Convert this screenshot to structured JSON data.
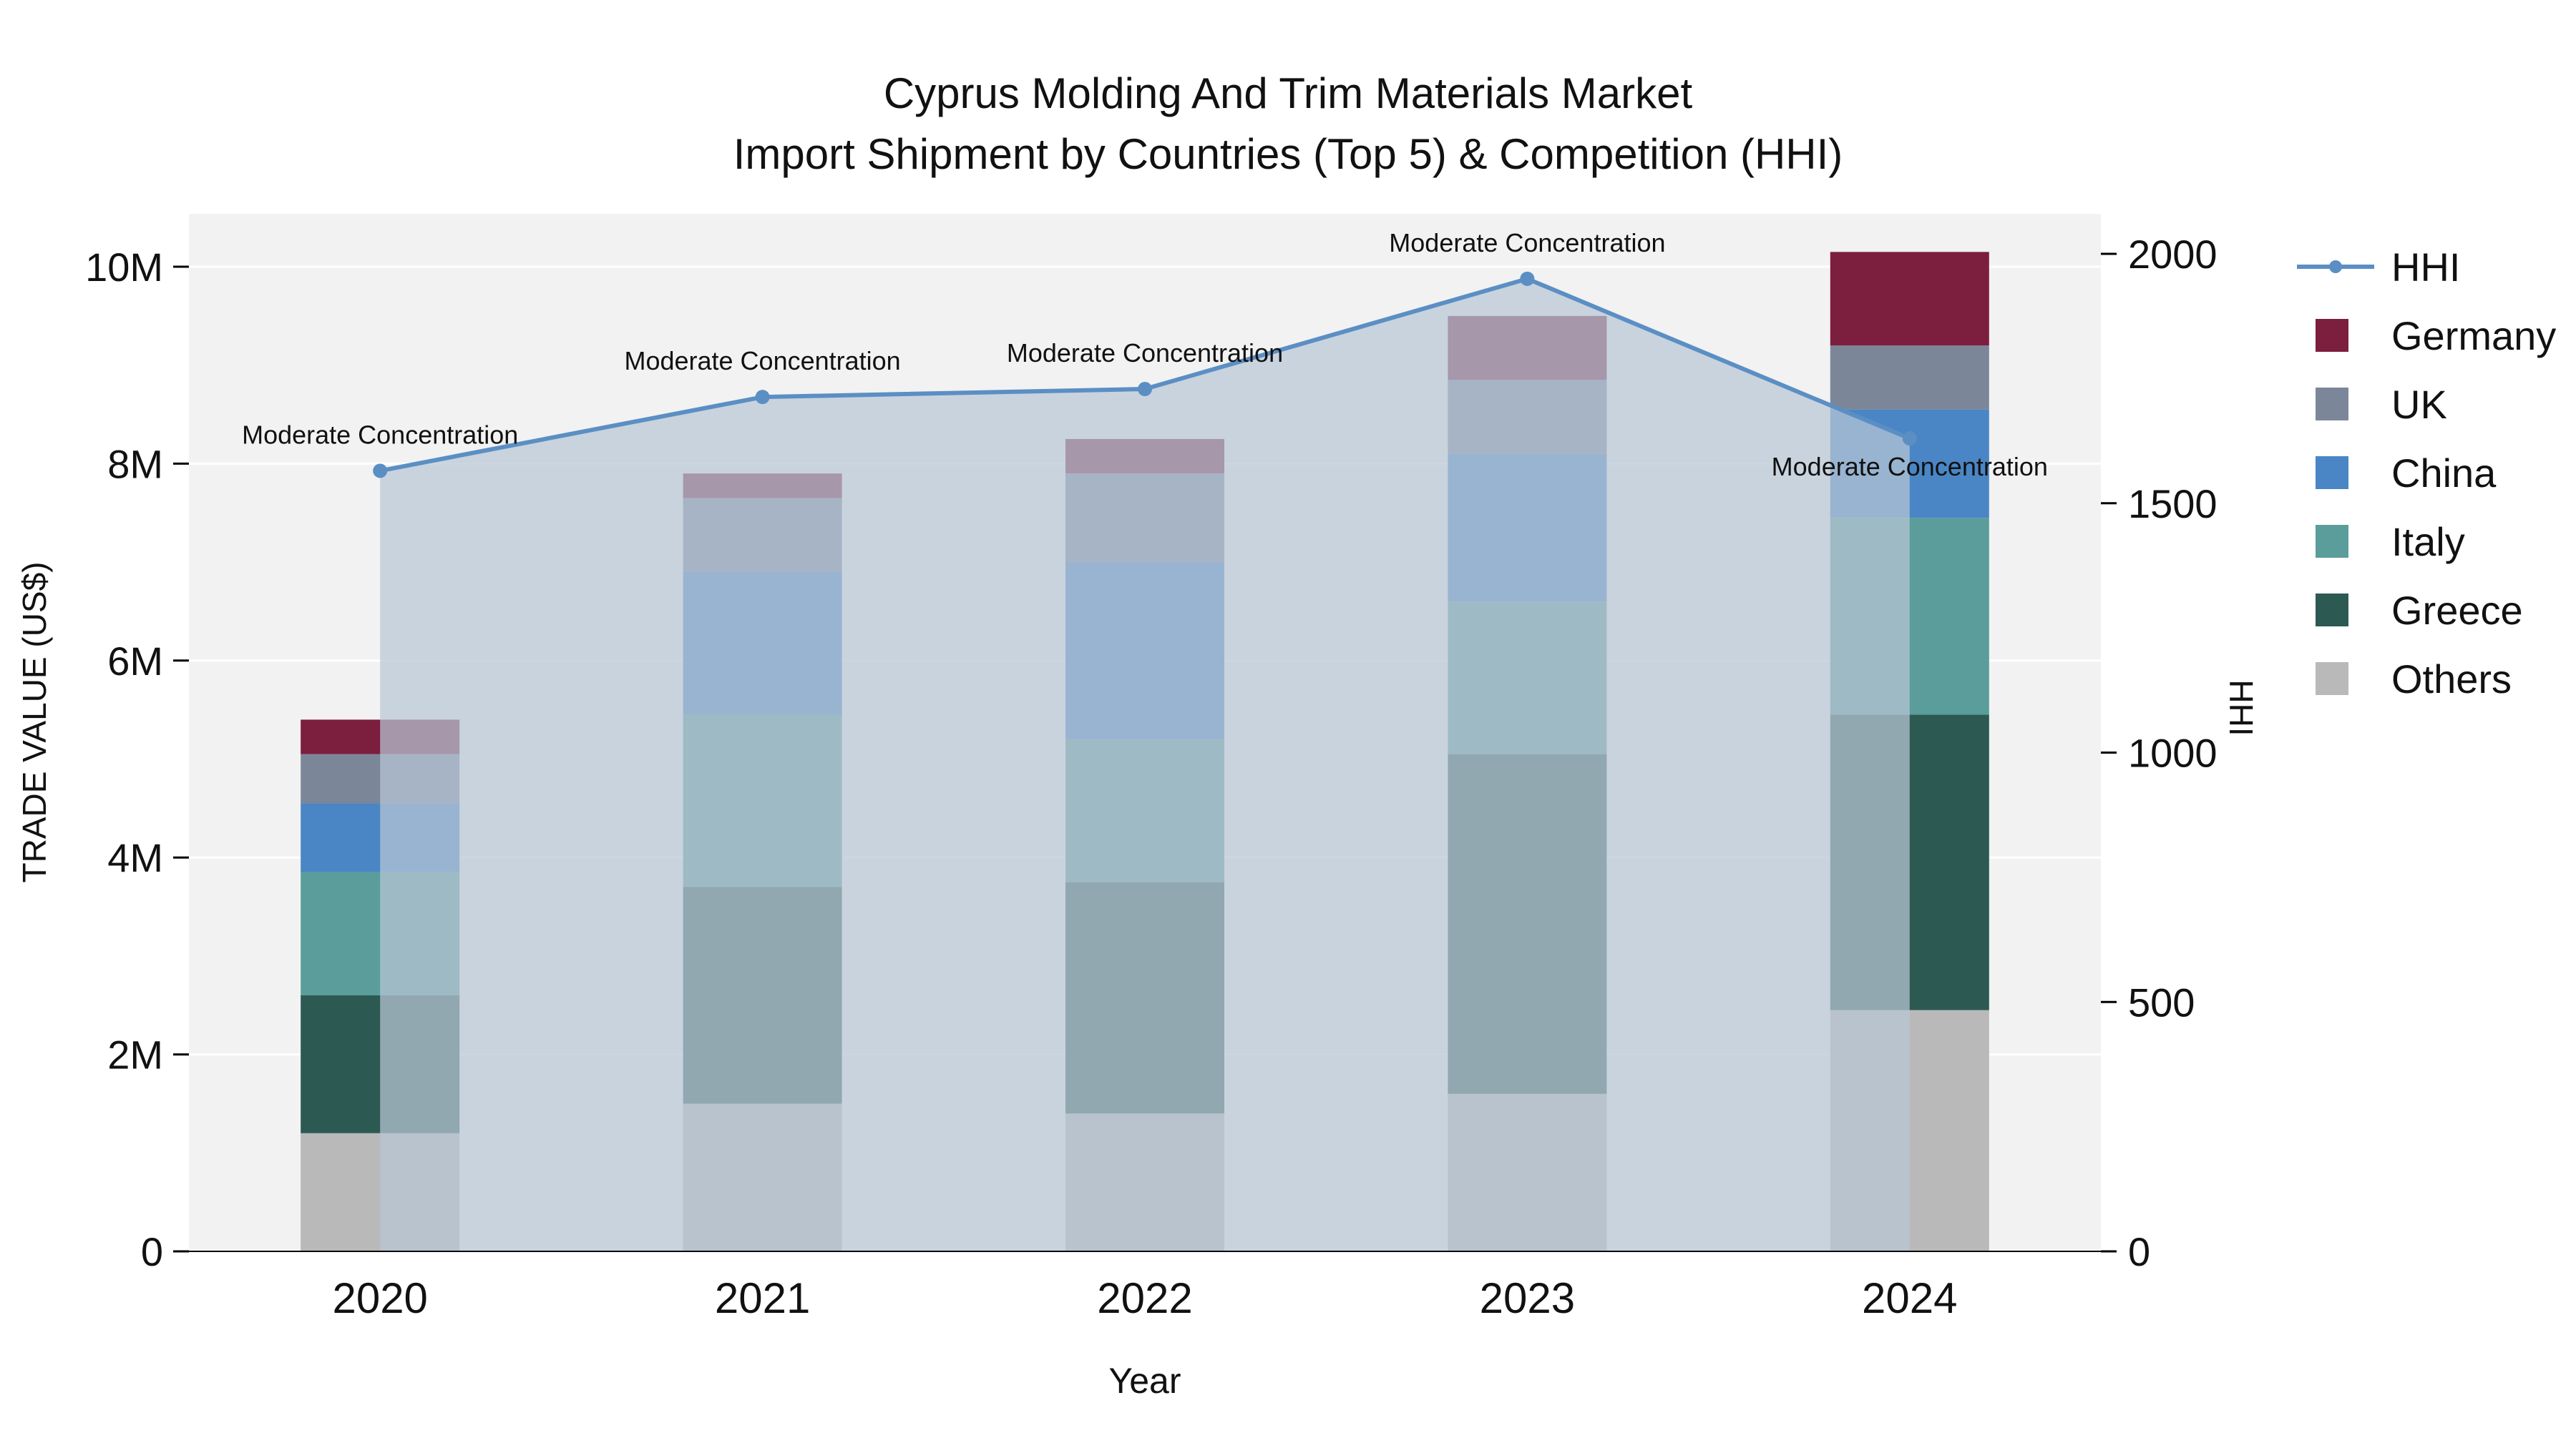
{
  "title": {
    "line1": "Cyprus Molding And Trim Materials Market",
    "line2": "Import Shipment by Countries (Top 5) & Competition (HHI)"
  },
  "axes": {
    "left": {
      "label": "TRADE VALUE (US$)",
      "ticks": [
        "0",
        "2M",
        "4M",
        "6M",
        "8M",
        "10M"
      ],
      "tick_values": [
        0,
        2,
        4,
        6,
        8,
        10
      ]
    },
    "right": {
      "label": "HHI",
      "ticks": [
        "0",
        "500",
        "1000",
        "1500",
        "2000"
      ],
      "tick_values": [
        0,
        500,
        1000,
        1500,
        2000
      ]
    },
    "x": {
      "label": "Year"
    }
  },
  "chart_data": {
    "type": "bar",
    "subtype": "stacked-bars-with-hhi-line-and-area",
    "categories": [
      "2020",
      "2021",
      "2022",
      "2023",
      "2024"
    ],
    "unit": "US$ millions",
    "ylim_left": [
      0,
      10
    ],
    "ylim_right": [
      0,
      2000
    ],
    "stack_order": [
      "Others",
      "Greece",
      "Italy",
      "China",
      "UK",
      "Germany"
    ],
    "series": [
      {
        "name": "Germany",
        "color": "#7c1e3e",
        "values": [
          0.35,
          0.25,
          0.35,
          0.65,
          0.95
        ]
      },
      {
        "name": "UK",
        "color": "#7c8699",
        "values": [
          0.5,
          0.75,
          0.9,
          0.75,
          0.65
        ]
      },
      {
        "name": "China",
        "color": "#4a86c5",
        "values": [
          0.7,
          1.45,
          1.8,
          1.5,
          1.1
        ]
      },
      {
        "name": "Italy",
        "color": "#5b9d9a",
        "values": [
          1.25,
          1.75,
          1.45,
          1.55,
          2.0
        ]
      },
      {
        "name": "Greece",
        "color": "#2c5a52",
        "values": [
          1.4,
          2.2,
          2.35,
          3.45,
          3.0
        ]
      },
      {
        "name": "Others",
        "color": "#b9b9ba",
        "values": [
          1.2,
          1.5,
          1.4,
          1.6,
          2.45
        ]
      }
    ],
    "line": {
      "name": "HHI",
      "color": "#5b8fc4",
      "area_color": "#b9c6d6",
      "area_opacity": 0.72,
      "axis": "right",
      "values": [
        1565,
        1713,
        1729,
        1950,
        1630
      ]
    },
    "annotations": [
      "Moderate Concentration",
      "Moderate Concentration",
      "Moderate Concentration",
      "Moderate Concentration",
      "Moderate Concentration"
    ],
    "grid": true,
    "legend_position": "right"
  },
  "legend": {
    "items": [
      {
        "label": "HHI",
        "marker": "line"
      },
      {
        "label": "Germany",
        "marker": "square"
      },
      {
        "label": "UK",
        "marker": "square"
      },
      {
        "label": "China",
        "marker": "square"
      },
      {
        "label": "Italy",
        "marker": "square"
      },
      {
        "label": "Greece",
        "marker": "square"
      },
      {
        "label": "Others",
        "marker": "square"
      }
    ]
  },
  "colors": {
    "plot_bg": "#f2f2f2",
    "grid": "#ffffff",
    "text": "#111111",
    "axis_line": "#000000"
  }
}
